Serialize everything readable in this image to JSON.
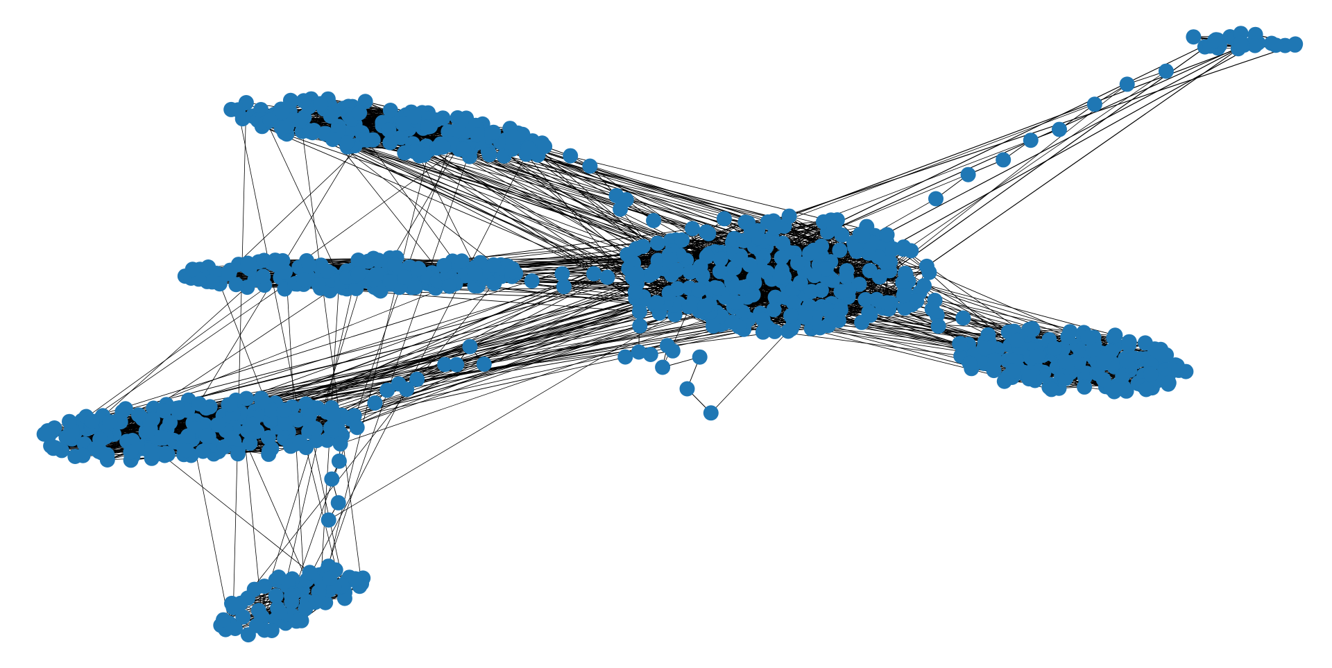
{
  "figure": {
    "type": "network-graph",
    "layout": "spring",
    "node_color": "#1f77b4",
    "edge_color": "#000000",
    "background": "#ffffff",
    "axes_visible": false,
    "labels_visible": false,
    "description_of_shape": "",
    "clusters": [
      {
        "name": "central-hub"
      },
      {
        "name": "upper-left-arm"
      },
      {
        "name": "middle-left-arm"
      },
      {
        "name": "lower-left-arm"
      },
      {
        "name": "bottom-arm"
      },
      {
        "name": "right-arm"
      },
      {
        "name": "far-upper-right-arm"
      }
    ]
  }
}
